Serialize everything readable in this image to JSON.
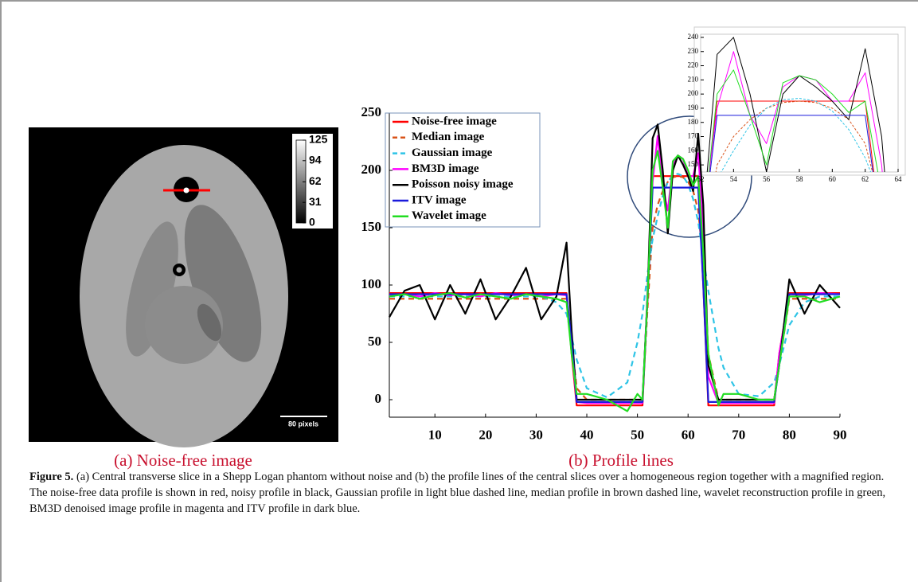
{
  "panel_a": {
    "colorbar_ticks": [
      125,
      94,
      62,
      31,
      0
    ],
    "colorbar_lim": [
      0,
      125
    ],
    "scale_bar_label": "80 pixels",
    "caption": "(a) Noise-free image"
  },
  "panel_b": {
    "caption": "(b) Profile lines"
  },
  "chart_data": [
    {
      "type": "line",
      "x": [
        1,
        4,
        7,
        10,
        13,
        16,
        19,
        22,
        25,
        28,
        31,
        34,
        36,
        37,
        38,
        40,
        44,
        48,
        50,
        51,
        52,
        53,
        54,
        55,
        56,
        57,
        58,
        59,
        60,
        61,
        62,
        63,
        64,
        66,
        67,
        70,
        74,
        77,
        78,
        80,
        83,
        86,
        90
      ],
      "series": [
        {
          "name": "Noise-free image",
          "color": "#ff0000",
          "dash": false,
          "values": [
            93,
            93,
            93,
            93,
            93,
            93,
            93,
            93,
            93,
            93,
            93,
            93,
            93,
            40,
            -5,
            -5,
            -5,
            -5,
            -5,
            -5,
            90,
            195,
            195,
            195,
            195,
            195,
            195,
            195,
            195,
            195,
            195,
            100,
            -5,
            -5,
            -5,
            -5,
            -5,
            -5,
            40,
            93,
            93,
            93,
            93
          ]
        },
        {
          "name": "Median image",
          "color": "#d95319",
          "dash": true,
          "values": [
            88,
            88,
            88,
            88,
            88,
            88,
            88,
            88,
            88,
            88,
            88,
            88,
            88,
            50,
            10,
            0,
            0,
            0,
            0,
            0,
            80,
            150,
            170,
            182,
            190,
            194,
            195,
            194,
            190,
            182,
            165,
            120,
            40,
            0,
            0,
            0,
            0,
            0,
            30,
            88,
            88,
            88,
            88
          ]
        },
        {
          "name": "Gaussian image",
          "color": "#2ec4e6",
          "dash": true,
          "values": [
            90,
            90,
            90,
            90,
            90,
            90,
            90,
            90,
            90,
            90,
            90,
            85,
            75,
            55,
            35,
            10,
            2,
            15,
            50,
            75,
            110,
            140,
            160,
            178,
            190,
            196,
            197,
            195,
            188,
            175,
            155,
            125,
            95,
            45,
            28,
            5,
            3,
            15,
            30,
            65,
            85,
            90,
            90
          ]
        },
        {
          "name": "BM3D image",
          "color": "#ff00ff",
          "dash": false,
          "values": [
            91,
            92,
            90,
            93,
            91,
            92,
            90,
            93,
            91,
            92,
            90,
            92,
            91,
            45,
            -2,
            -3,
            -3,
            -3,
            -3,
            -3,
            95,
            190,
            230,
            185,
            165,
            205,
            213,
            210,
            195,
            195,
            215,
            150,
            20,
            -3,
            -3,
            -3,
            -3,
            -3,
            40,
            92,
            91,
            93,
            92
          ]
        },
        {
          "name": "Poisson noisy image",
          "color": "#000000",
          "dash": false,
          "values": [
            72,
            95,
            100,
            70,
            100,
            75,
            105,
            70,
            90,
            115,
            70,
            90,
            137,
            60,
            0,
            0,
            0,
            0,
            0,
            0,
            90,
            228,
            240,
            200,
            145,
            200,
            213,
            205,
            195,
            182,
            232,
            170,
            30,
            0,
            0,
            0,
            0,
            0,
            30,
            105,
            75,
            100,
            80
          ]
        },
        {
          "name": "ITV image",
          "color": "#1a1adb",
          "dash": false,
          "values": [
            92,
            92,
            92,
            92,
            92,
            92,
            92,
            92,
            92,
            92,
            92,
            92,
            92,
            50,
            -2,
            -2,
            -2,
            -2,
            -2,
            -2,
            90,
            185,
            185,
            185,
            185,
            185,
            185,
            185,
            185,
            185,
            185,
            100,
            -2,
            -2,
            -2,
            -2,
            -2,
            -2,
            30,
            92,
            92,
            92,
            92
          ]
        },
        {
          "name": "Wavelet image",
          "color": "#22dd22",
          "dash": false,
          "values": [
            90,
            92,
            88,
            91,
            93,
            89,
            92,
            90,
            88,
            92,
            90,
            88,
            85,
            40,
            5,
            5,
            0,
            -10,
            5,
            0,
            90,
            200,
            217,
            185,
            150,
            208,
            213,
            210,
            200,
            187,
            195,
            130,
            40,
            -5,
            5,
            5,
            0,
            0,
            30,
            90,
            90,
            85,
            90
          ]
        }
      ],
      "xlim": [
        1,
        90
      ],
      "ylim": [
        -15,
        250
      ],
      "xticks": [
        10,
        20,
        30,
        40,
        50,
        60,
        70,
        80,
        90
      ],
      "yticks": [
        0,
        50,
        100,
        150,
        200,
        250
      ],
      "legend": "top-left"
    },
    {
      "type": "line",
      "xlim": [
        52,
        64
      ],
      "ylim": [
        145,
        242
      ],
      "xticks": [
        52,
        54,
        56,
        58,
        60,
        62,
        64
      ],
      "yticks": [
        150,
        160,
        170,
        180,
        190,
        200,
        210,
        220,
        230,
        240
      ],
      "grid": false
    }
  ],
  "figure_caption": {
    "label": "Figure 5.",
    "text": "(a) Central transverse slice in a Shepp Logan phantom without noise and (b) the profile lines of the central slices over a homogeneous region together with a magnified region. The noise-free data profile is shown in red, noisy profile in black, Gaussian profile in light blue dashed line, median profile in brown dashed line, wavelet reconstruction profile in green, BM3D denoised image profile in magenta and ITV profile in dark blue."
  }
}
